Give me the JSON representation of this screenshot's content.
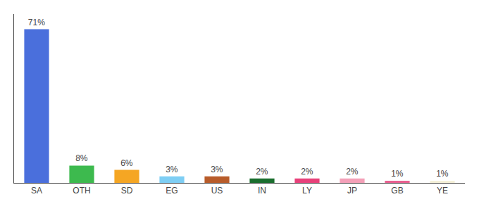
{
  "chart_data": {
    "type": "bar",
    "categories": [
      "SA",
      "OTH",
      "SD",
      "EG",
      "US",
      "IN",
      "LY",
      "JP",
      "GB",
      "YE"
    ],
    "values": [
      71,
      8,
      6,
      3,
      3,
      2,
      2,
      2,
      1,
      1
    ],
    "value_labels": [
      "71%",
      "8%",
      "6%",
      "3%",
      "3%",
      "2%",
      "2%",
      "2%",
      "1%",
      "1%"
    ],
    "colors": [
      "#4a6fdc",
      "#3dba4e",
      "#f5a623",
      "#7ecef4",
      "#b85c2a",
      "#1a6e2e",
      "#e8417a",
      "#f4a0b8",
      "#e86090",
      "#f5f0d8"
    ],
    "ylim": [
      0,
      78
    ],
    "grid": false,
    "data_labels": true,
    "tick_labels": "x"
  }
}
